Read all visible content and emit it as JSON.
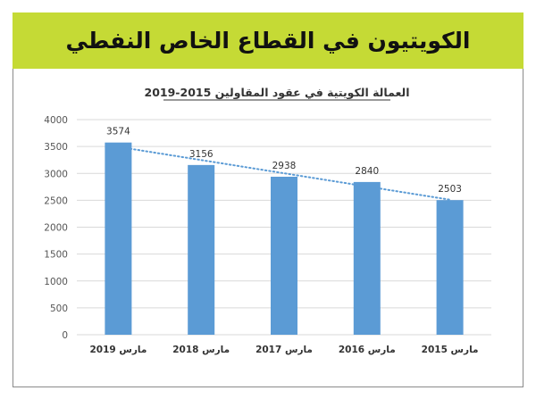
{
  "banner": {
    "title": "الكويتيون في القطاع الخاص النفطي"
  },
  "colors": {
    "banner": "#c5da35",
    "bar": "#5b9bd5",
    "trendline": "#5b9bd5",
    "grid": "#d9d9d9"
  },
  "chart_data": {
    "type": "bar",
    "title": "العمالة الكويتية في عقود المقاولين 2015-2019",
    "categories": [
      "مارس 2019",
      "مارس 2018",
      "مارس 2017",
      "مارس 2016",
      "مارس 2015"
    ],
    "values": [
      3574,
      3156,
      2938,
      2840,
      2503
    ],
    "ylim": [
      0,
      4000
    ],
    "yticks": [
      0,
      500,
      1000,
      1500,
      2000,
      2500,
      3000,
      3500,
      4000
    ],
    "grid": true,
    "trendline": "linear-dotted",
    "data_labels": true
  }
}
